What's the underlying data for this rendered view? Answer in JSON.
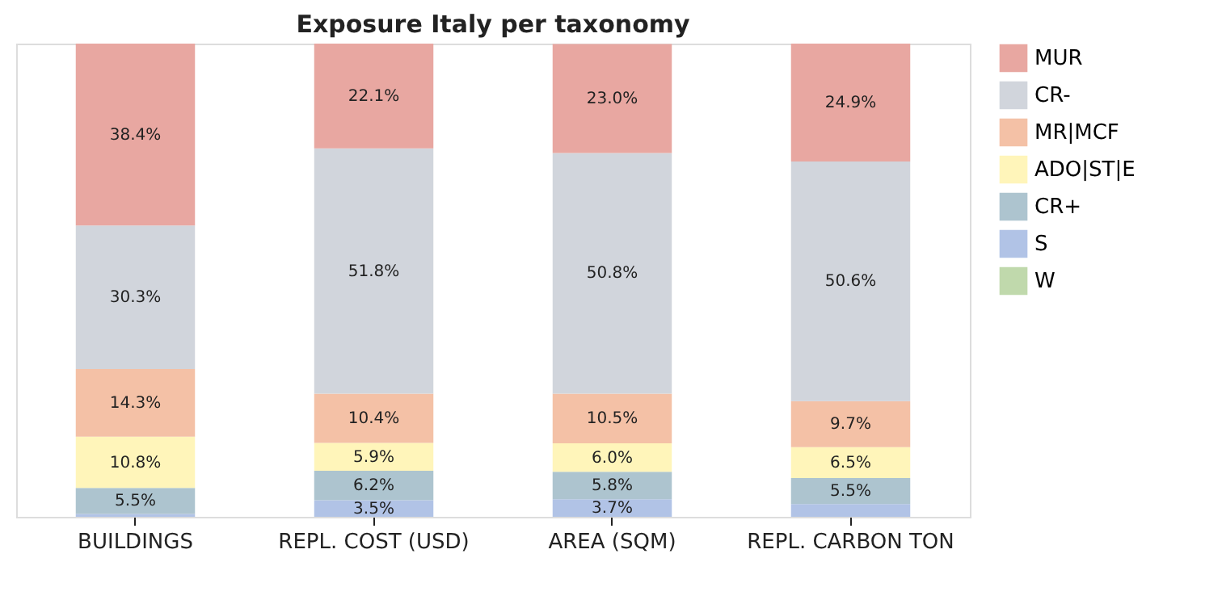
{
  "chart_data": {
    "type": "bar",
    "title": "Exposure Italy per taxonomy",
    "stacked": true,
    "legend": "top right",
    "grid": false,
    "tick_labels": "x",
    "categories": [
      "BUILDINGS",
      "REPL. COST (USD)",
      "AREA (SQM)",
      "REPL. CARBON TON"
    ],
    "series": [
      {
        "name": "W",
        "color": "#c0d9ac",
        "values": [
          null,
          null,
          null,
          null
        ],
        "value_labels": [
          null,
          null,
          null,
          null
        ]
      },
      {
        "name": "S",
        "color": "#b1c3e6",
        "values": [
          0.6,
          3.5,
          3.7,
          2.7
        ],
        "value_labels": [
          null,
          "3.5%",
          "3.7%",
          null
        ]
      },
      {
        "name": "CR+",
        "color": "#adc4cf",
        "values": [
          5.5,
          6.2,
          5.8,
          5.5
        ],
        "value_labels": [
          "5.5%",
          "6.2%",
          "5.8%",
          "5.5%"
        ]
      },
      {
        "name": "ADO|ST|E",
        "color": "#fff5ba",
        "values": [
          10.8,
          5.9,
          6.0,
          6.5
        ],
        "value_labels": [
          "10.8%",
          "5.9%",
          "6.0%",
          "6.5%"
        ]
      },
      {
        "name": "MR|MCF",
        "color": "#f4c1a6",
        "values": [
          14.3,
          10.4,
          10.5,
          9.7
        ],
        "value_labels": [
          "14.3%",
          "10.4%",
          "10.5%",
          "9.7%"
        ]
      },
      {
        "name": "CR-",
        "color": "#d1d5dc",
        "values": [
          30.3,
          51.8,
          50.8,
          50.6
        ],
        "value_labels": [
          "30.3%",
          "51.8%",
          "50.8%",
          "50.6%"
        ]
      },
      {
        "name": "MUR",
        "color": "#e8a7a1",
        "values": [
          38.4,
          22.1,
          23.0,
          24.9
        ],
        "value_labels": [
          "38.4%",
          "22.1%",
          "23.0%",
          "24.9%"
        ]
      }
    ]
  }
}
